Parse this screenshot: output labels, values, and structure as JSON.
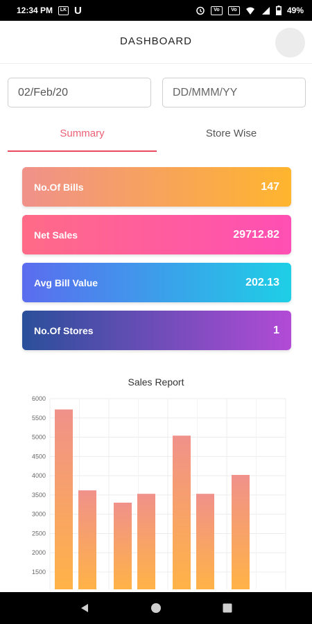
{
  "status_bar": {
    "time": "12:34 PM",
    "battery": "49%",
    "icons": [
      "lk-icon",
      "u-icon",
      "alarm-icon",
      "volte-icon",
      "wifi-icon",
      "signal-icon",
      "battery-icon"
    ]
  },
  "header": {
    "title": "DASHBOARD"
  },
  "filters": {
    "from_value": "02/Feb/20",
    "to_placeholder": "DD/MMM/YY"
  },
  "tabs": [
    {
      "label": "Summary"
    },
    {
      "label": "Store Wise"
    }
  ],
  "cards": [
    {
      "label": "No.Of Bills",
      "value": "147"
    },
    {
      "label": "Net Sales",
      "value": "29712.82"
    },
    {
      "label": "Avg Bill Value",
      "value": "202.13"
    },
    {
      "label": "No.Of Stores",
      "value": "1"
    }
  ],
  "colors": {
    "accent": "#e84a5f",
    "bar_top": "#f0918a",
    "bar_bottom": "#ffb347"
  },
  "chart_data": {
    "type": "bar",
    "title": "Sales Report",
    "xlabel": "",
    "ylabel": "",
    "ylim": [
      1500,
      6000
    ],
    "y_ticks": [
      "6000",
      "5500",
      "5000",
      "4500",
      "4000",
      "3500",
      "3000",
      "2500",
      "2000",
      "1500"
    ],
    "grid": true,
    "groups": [
      {
        "values": [
          5720,
          3620
        ]
      },
      {
        "values": [
          3300,
          3530
        ]
      },
      {
        "values": [
          5040,
          3530
        ]
      },
      {
        "values": [
          4020
        ]
      }
    ]
  }
}
